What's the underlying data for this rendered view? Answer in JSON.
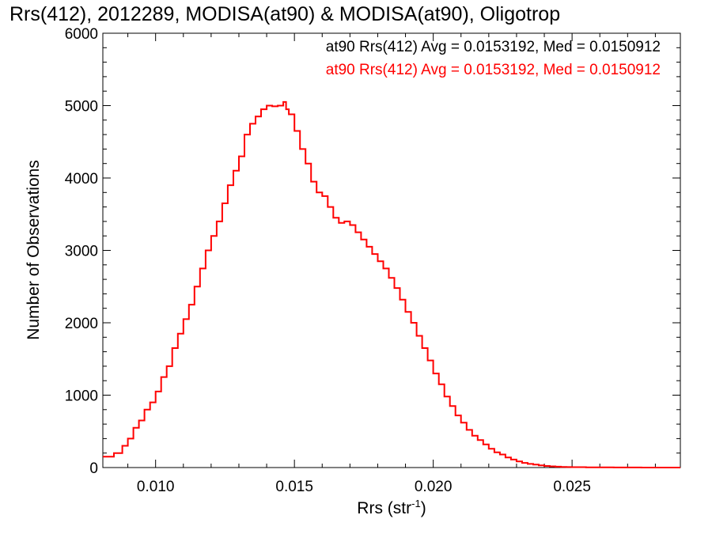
{
  "chart_data": {
    "type": "line",
    "title": "Rrs(412), 2012289, MODISA(at90) & MODISA(at90), Oligotrop",
    "xlabel": "Rrs (str",
    "xlabel_sup": "-1",
    "xlabel_close": ")",
    "ylabel": "Number of Observations",
    "xlim": [
      0.0081,
      0.0289
    ],
    "ylim": [
      0,
      6000
    ],
    "xticks": [
      0.01,
      0.015,
      0.02,
      0.025
    ],
    "xtick_labels": [
      "0.010",
      "0.015",
      "0.020",
      "0.025"
    ],
    "yticks": [
      0,
      1000,
      2000,
      3000,
      4000,
      5000,
      6000
    ],
    "ytick_labels": [
      "0",
      "1000",
      "2000",
      "3000",
      "4000",
      "5000",
      "6000"
    ],
    "grid": false,
    "legend_position": "top-right",
    "series": [
      {
        "name": "at90 Rrs(412) Avg = 0.0153192, Med = 0.0150912",
        "color": "#000000",
        "x": [
          0.0081,
          0.0085,
          0.0088,
          0.009,
          0.0092,
          0.0094,
          0.0096,
          0.0098,
          0.01,
          0.0102,
          0.0104,
          0.0106,
          0.0108,
          0.011,
          0.0112,
          0.0114,
          0.0116,
          0.0118,
          0.012,
          0.0122,
          0.0124,
          0.0126,
          0.0128,
          0.013,
          0.0132,
          0.0134,
          0.0136,
          0.0138,
          0.014,
          0.0142,
          0.0144,
          0.0146,
          0.0147,
          0.0148,
          0.015,
          0.0152,
          0.0154,
          0.0156,
          0.0158,
          0.016,
          0.0162,
          0.0164,
          0.0166,
          0.0168,
          0.017,
          0.0172,
          0.0174,
          0.0176,
          0.0178,
          0.018,
          0.0182,
          0.0184,
          0.0186,
          0.0188,
          0.019,
          0.0192,
          0.0194,
          0.0196,
          0.0198,
          0.02,
          0.0202,
          0.0204,
          0.0206,
          0.0208,
          0.021,
          0.0212,
          0.0214,
          0.0216,
          0.0218,
          0.022,
          0.0222,
          0.0224,
          0.0226,
          0.0228,
          0.023,
          0.0232,
          0.0234,
          0.0236,
          0.0238,
          0.024,
          0.0242,
          0.0244,
          0.0246,
          0.0248,
          0.025,
          0.0255,
          0.026,
          0.0265,
          0.027,
          0.0275,
          0.028,
          0.0289
        ],
        "y": [
          150,
          200,
          300,
          400,
          550,
          650,
          800,
          900,
          1050,
          1250,
          1400,
          1650,
          1850,
          2050,
          2250,
          2500,
          2750,
          3000,
          3200,
          3400,
          3650,
          3900,
          4100,
          4300,
          4600,
          4750,
          4850,
          4950,
          5000,
          4990,
          5000,
          5050,
          4950,
          4880,
          4650,
          4400,
          4200,
          3950,
          3800,
          3750,
          3600,
          3450,
          3380,
          3400,
          3350,
          3250,
          3150,
          3050,
          2950,
          2850,
          2750,
          2620,
          2480,
          2320,
          2150,
          2000,
          1820,
          1650,
          1480,
          1300,
          1150,
          980,
          850,
          720,
          620,
          520,
          440,
          380,
          320,
          260,
          210,
          180,
          140,
          110,
          85,
          65,
          50,
          40,
          30,
          22,
          16,
          12,
          9,
          7,
          5,
          3,
          2,
          1,
          1,
          0,
          0,
          0
        ],
        "show_line": false
      },
      {
        "name": "at90 Rrs(412) Avg = 0.0153192, Med = 0.0150912",
        "color": "#ff0000",
        "x": [
          0.0081,
          0.0085,
          0.0088,
          0.009,
          0.0092,
          0.0094,
          0.0096,
          0.0098,
          0.01,
          0.0102,
          0.0104,
          0.0106,
          0.0108,
          0.011,
          0.0112,
          0.0114,
          0.0116,
          0.0118,
          0.012,
          0.0122,
          0.0124,
          0.0126,
          0.0128,
          0.013,
          0.0132,
          0.0134,
          0.0136,
          0.0138,
          0.014,
          0.0142,
          0.0144,
          0.0146,
          0.0147,
          0.0148,
          0.015,
          0.0152,
          0.0154,
          0.0156,
          0.0158,
          0.016,
          0.0162,
          0.0164,
          0.0166,
          0.0168,
          0.017,
          0.0172,
          0.0174,
          0.0176,
          0.0178,
          0.018,
          0.0182,
          0.0184,
          0.0186,
          0.0188,
          0.019,
          0.0192,
          0.0194,
          0.0196,
          0.0198,
          0.02,
          0.0202,
          0.0204,
          0.0206,
          0.0208,
          0.021,
          0.0212,
          0.0214,
          0.0216,
          0.0218,
          0.022,
          0.0222,
          0.0224,
          0.0226,
          0.0228,
          0.023,
          0.0232,
          0.0234,
          0.0236,
          0.0238,
          0.024,
          0.0242,
          0.0244,
          0.0246,
          0.0248,
          0.025,
          0.0255,
          0.026,
          0.0265,
          0.027,
          0.0275,
          0.028,
          0.0289
        ],
        "y": [
          150,
          200,
          300,
          400,
          550,
          650,
          800,
          900,
          1050,
          1250,
          1400,
          1650,
          1850,
          2050,
          2250,
          2500,
          2750,
          3000,
          3200,
          3400,
          3650,
          3900,
          4100,
          4300,
          4600,
          4750,
          4850,
          4950,
          5000,
          4990,
          5000,
          5050,
          4950,
          4880,
          4650,
          4400,
          4200,
          3950,
          3800,
          3750,
          3600,
          3450,
          3380,
          3400,
          3350,
          3250,
          3150,
          3050,
          2950,
          2850,
          2750,
          2620,
          2480,
          2320,
          2150,
          2000,
          1820,
          1650,
          1480,
          1300,
          1150,
          980,
          850,
          720,
          620,
          520,
          440,
          380,
          320,
          260,
          210,
          180,
          140,
          110,
          85,
          65,
          50,
          40,
          30,
          22,
          16,
          12,
          9,
          7,
          5,
          3,
          2,
          1,
          1,
          0,
          0,
          0
        ],
        "show_line": true
      }
    ]
  }
}
